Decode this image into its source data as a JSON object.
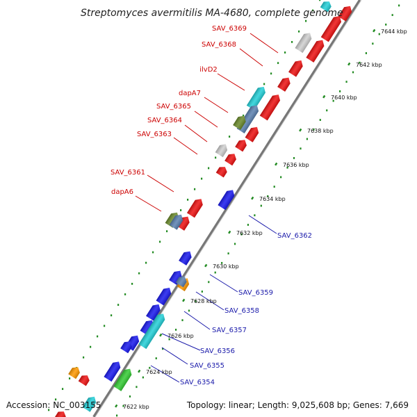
{
  "title": "Streptomyces avermitilis MA-4680, complete genome",
  "accession": "Accession: NC_003155",
  "topology": "Topology: linear; Length: 9,025,608 bp; Genes: 7,669",
  "colors": {
    "red": "#ee1111",
    "blue": "#1818ee",
    "cyan": "#22d0d8",
    "green": "#33cc33",
    "olive": "#6a8a2a",
    "steel": "#5a80b0",
    "orange": "#ff9900",
    "grey": "#cfcfcf",
    "label_red": "#cc0000",
    "label_blue": "#1a1aaa",
    "dots": "#228b22"
  },
  "kbp_ticks": [
    "7622 kbp",
    "7624 kbp",
    "7626 kbp",
    "7628 kbp",
    "7630 kbp",
    "7632 kbp",
    "7634 kbp",
    "7636 kbp",
    "7638 kbp",
    "7640 kbp",
    "7642 kbp",
    "7644 kbp"
  ],
  "labels_top": [
    "SAV_6369",
    "SAV_6368",
    "ilvD2",
    "dapA7",
    "SAV_6365",
    "SAV_6364",
    "SAV_6363",
    "SAV_6361",
    "dapA6"
  ],
  "labels_bottom": [
    "SAV_6362",
    "SAV_6359",
    "SAV_6358",
    "SAV_6357",
    "SAV_6356",
    "SAV_6355",
    "SAV_6354"
  ]
}
